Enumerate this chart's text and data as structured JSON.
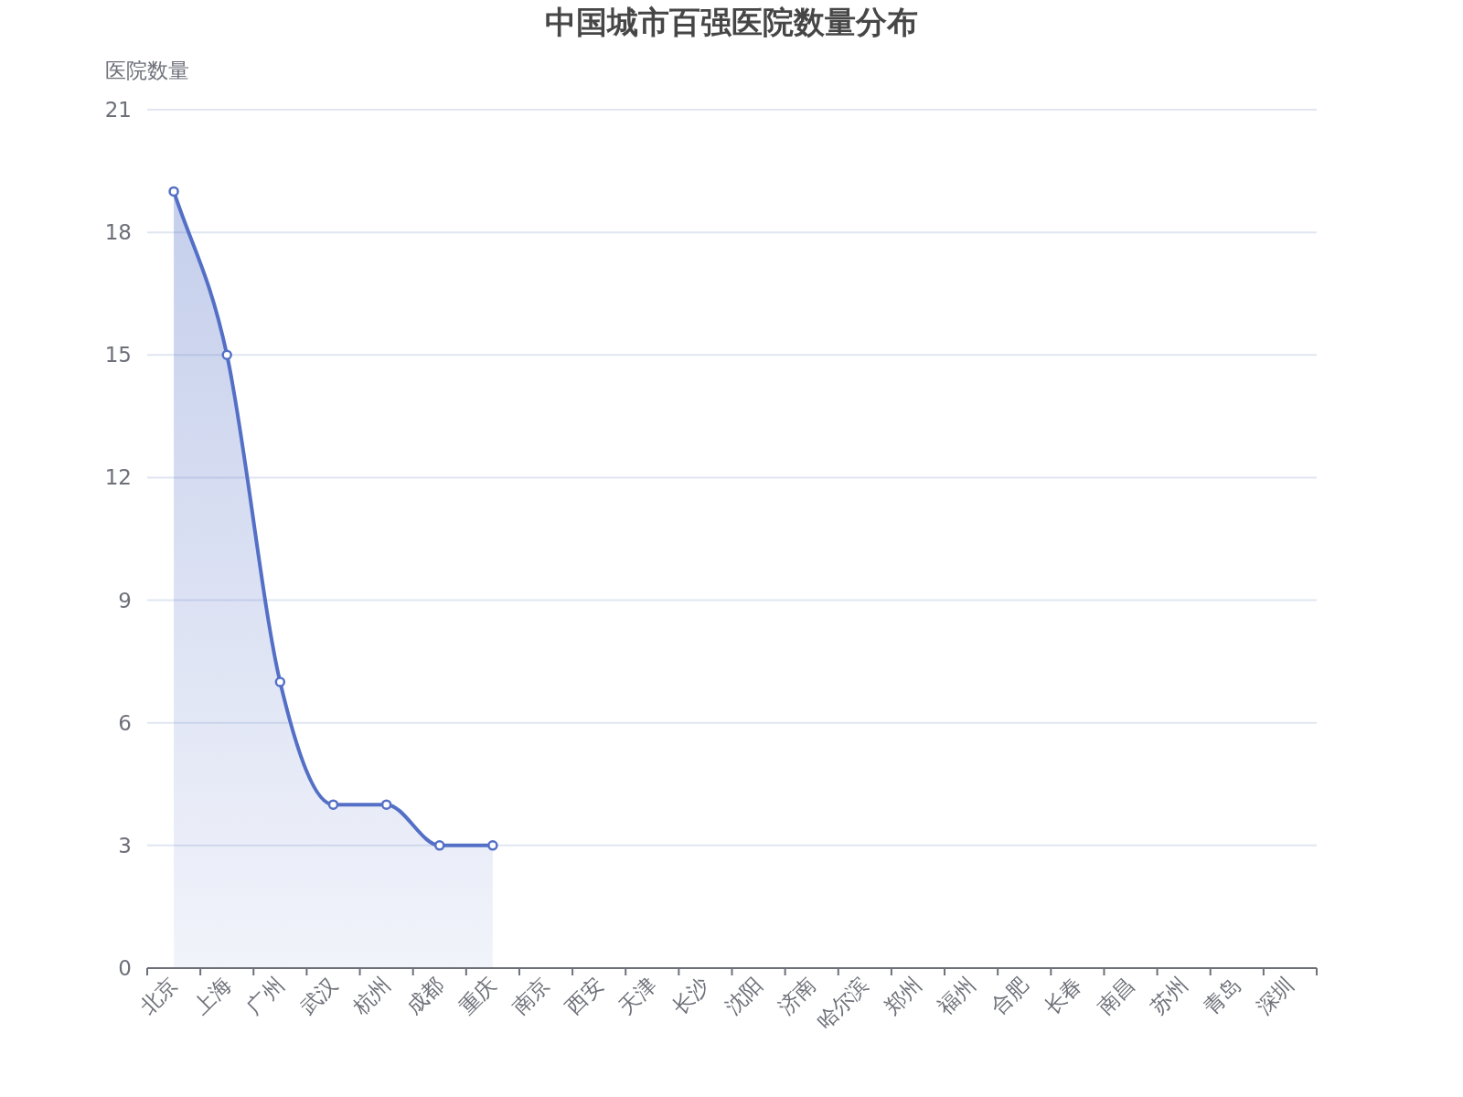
{
  "chart_data": {
    "type": "area",
    "title": "中国城市百强医院数量分布",
    "ylabel": "医院数量",
    "categories": [
      "北京",
      "上海",
      "广州",
      "武汉",
      "杭州",
      "成都",
      "重庆",
      "南京",
      "西安",
      "天津",
      "长沙",
      "沈阳",
      "济南",
      "哈尔滨",
      "郑州",
      "福州",
      "合肥",
      "长春",
      "南昌",
      "苏州",
      "青岛",
      "深圳"
    ],
    "series": [
      {
        "color": "#5470c6",
        "values": [
          19,
          15,
          7,
          4,
          4,
          3,
          3,
          null,
          null,
          null,
          null,
          null,
          null,
          null,
          null,
          null,
          null,
          null,
          null,
          null,
          null,
          null
        ]
      }
    ],
    "ylim": [
      0,
      21
    ],
    "yticks": [
      0,
      3,
      6,
      9,
      12,
      15,
      18,
      21
    ],
    "grid": "y",
    "marker": "circle"
  }
}
